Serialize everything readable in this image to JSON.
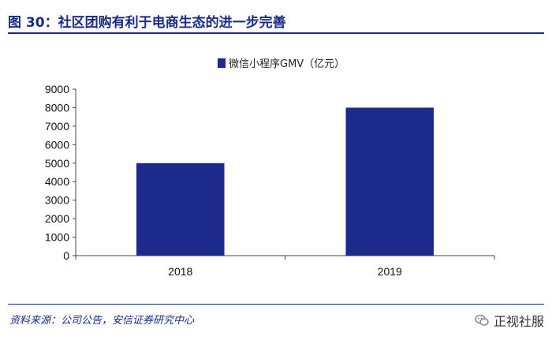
{
  "figure": {
    "title": "图 30：社区团购有利于电商生态的进一步完善",
    "source": "资料来源：公司公告，安信证券研究中心",
    "watermark": "正视社服",
    "watermark_icon": "wechat-icon"
  },
  "colors": {
    "accent": "#1a2a8a",
    "bar": "#1c2a8c"
  },
  "chart_data": {
    "type": "bar",
    "categories": [
      "2018",
      "2019"
    ],
    "series": [
      {
        "name": "微信小程序GMV（亿元）",
        "values": [
          5000,
          8000
        ]
      }
    ],
    "ylim": [
      0,
      9000
    ],
    "yticks": [
      0,
      1000,
      2000,
      3000,
      4000,
      5000,
      6000,
      7000,
      8000,
      9000
    ],
    "legend": "top-center",
    "grid": false
  }
}
